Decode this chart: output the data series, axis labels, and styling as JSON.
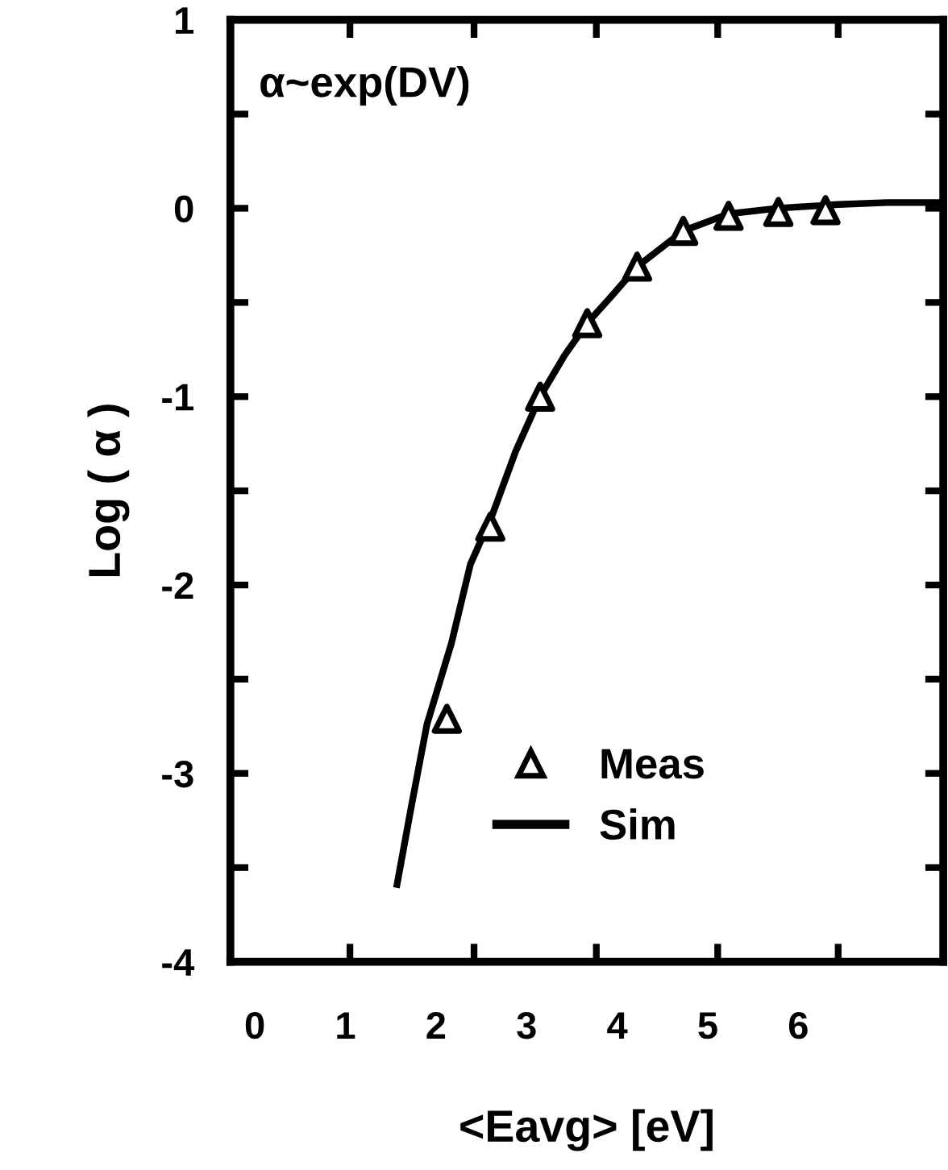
{
  "chart_data": {
    "type": "line",
    "xlabel": "<Eavg> [eV]",
    "ylabel": "Log ( α )",
    "annotations": [
      "α~exp(DV)"
    ],
    "xlim": [
      -0.27,
      7.6
    ],
    "ylim": [
      -4,
      1
    ],
    "xticks": [
      0,
      1,
      2,
      3,
      4,
      5,
      6,
      {
        "value": 1.05,
        "label": null
      },
      {
        "value": 2.42,
        "label": null
      },
      {
        "value": 3.77,
        "label": null
      },
      {
        "value": 5.11,
        "label": null
      },
      {
        "value": 6.44,
        "label": null
      }
    ],
    "yticks": [
      -4,
      {
        "value": -3.5,
        "label": null
      },
      -3,
      {
        "value": -2.5,
        "label": null
      },
      -2,
      {
        "value": -1.5,
        "label": null
      },
      -1,
      {
        "value": -0.5,
        "label": null
      },
      0,
      {
        "value": 0.5,
        "label": null
      },
      1
    ],
    "series": [
      {
        "name": "Meas",
        "type": "scatter",
        "marker": "triangle",
        "color": "#000000",
        "x": [
          2.12,
          2.6,
          3.15,
          3.67,
          4.22,
          4.73,
          5.23,
          5.78,
          6.3
        ],
        "values": [
          -2.71,
          -1.69,
          -1.0,
          -0.61,
          -0.31,
          -0.12,
          -0.04,
          -0.02,
          -0.01
        ]
      },
      {
        "name": "Sim",
        "marker": "none",
        "line_style": "solid",
        "color": "#000000",
        "x": [
          1.57,
          1.73,
          1.9,
          2.17,
          2.38,
          2.62,
          2.88,
          3.15,
          3.42,
          3.67,
          3.95,
          4.22,
          4.73,
          5.23,
          5.78,
          6.44,
          6.98,
          7.55
        ],
        "values": [
          -3.59,
          -3.17,
          -2.74,
          -2.31,
          -1.89,
          -1.63,
          -1.29,
          -1.0,
          -0.78,
          -0.61,
          -0.46,
          -0.31,
          -0.12,
          -0.03,
          0.0,
          0.02,
          0.03,
          0.03
        ]
      }
    ],
    "legend": "bottom right",
    "grid": false
  }
}
